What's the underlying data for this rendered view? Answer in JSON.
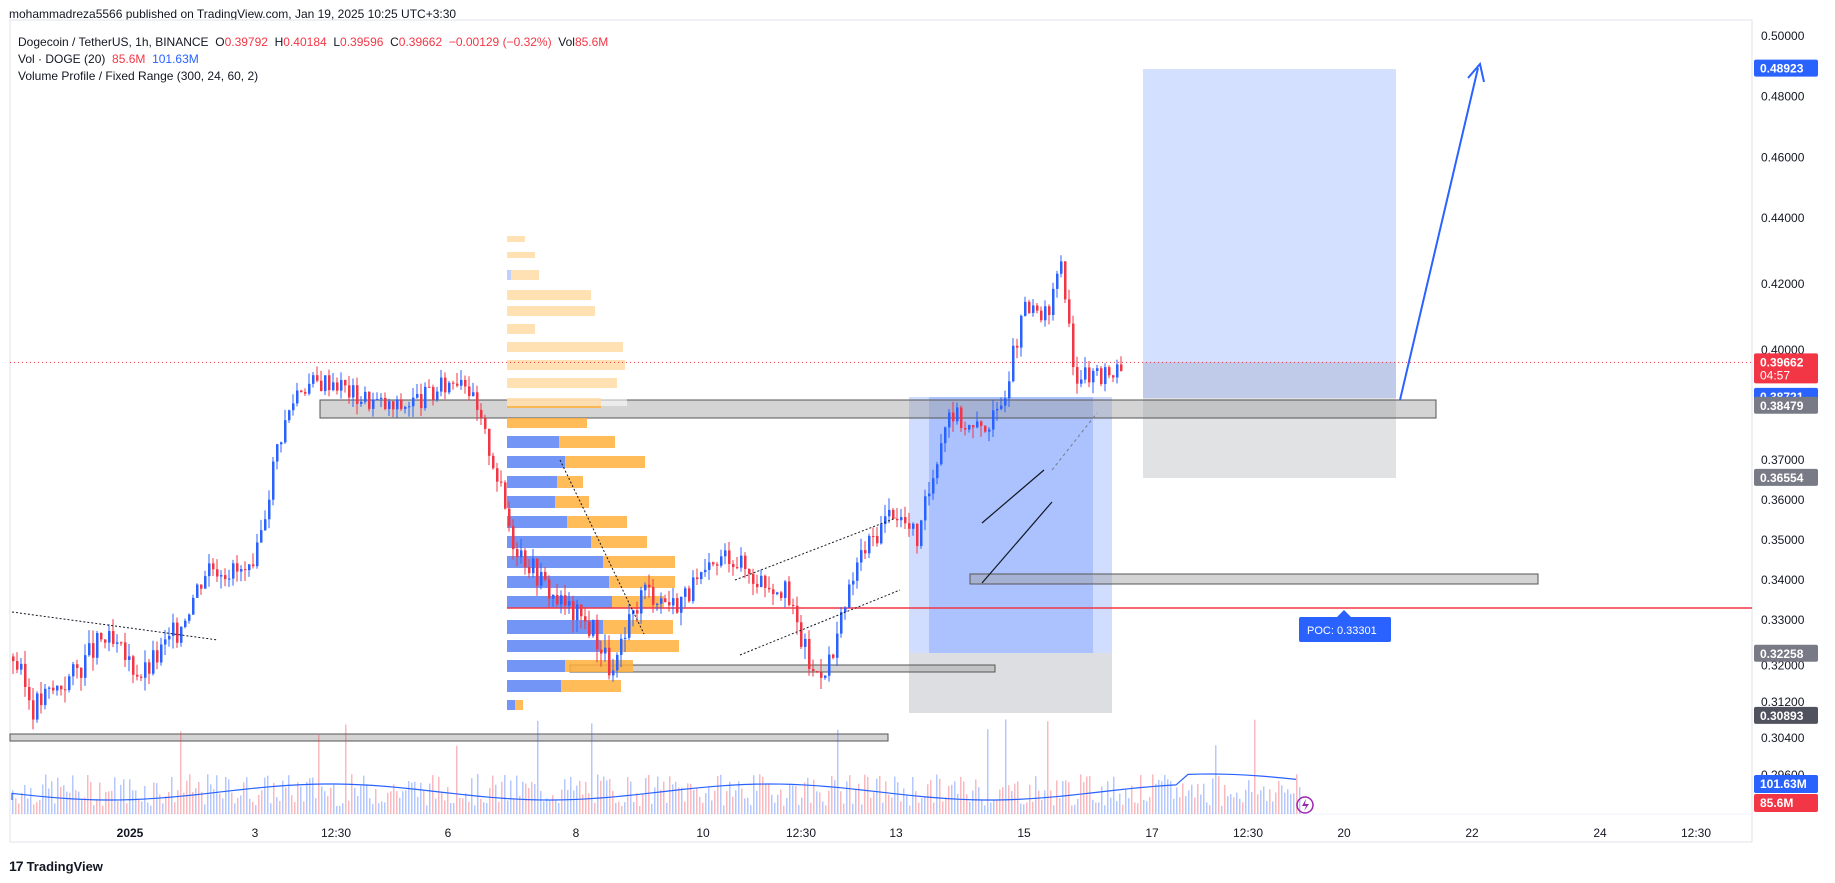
{
  "publisher_line": "mohammadreza5566 published on TradingView.com, Jan 19, 2025 10:25 UTC+3:30",
  "legend": {
    "symbol": "Dogecoin / TetherUS, 1h, BINANCE",
    "o_label": "O",
    "o": "0.39792",
    "h_label": "H",
    "h": "0.40184",
    "l_label": "L",
    "l": "0.39596",
    "c_label": "C",
    "c": "0.39662",
    "change": "−0.00129 (−0.32%)",
    "vol_label": "Vol",
    "vol": "85.6M",
    "vol_ind": "Vol · DOGE (20)",
    "vol_ind_v1": "85.6M",
    "vol_ind_v2": "101.63M",
    "vp": "Volume Profile / Fixed Range (300, 24, 60, 2)"
  },
  "footer": {
    "logo": "17",
    "brand": "TradingView"
  },
  "chart_data": {
    "type": "candlestick",
    "title": "Dogecoin / TetherUS, 1h, BINANCE",
    "x_tick_labels": [
      "2025",
      "3",
      "12:30",
      "6",
      "8",
      "10",
      "12:30",
      "13",
      "15",
      "17",
      "12:30",
      "20",
      "22",
      "24",
      "12:30"
    ],
    "y_tick_labels": [
      "0.50000",
      "0.48000",
      "0.46000",
      "0.44000",
      "0.42000",
      "0.40000",
      "0.37000",
      "0.36000",
      "0.35000",
      "0.34000",
      "0.33000",
      "0.32000",
      "0.31200",
      "0.30400",
      "0.29600"
    ],
    "price_badges": [
      {
        "label": "0.48923",
        "value": 0.48923,
        "color": "#2962ff"
      },
      {
        "label": "0.39662",
        "value": 0.39662,
        "color": "#f23645",
        "sub": "04:57"
      },
      {
        "label": "0.38721",
        "value": 0.38721,
        "color": "#2962ff"
      },
      {
        "label": "0.38479",
        "value": 0.38479,
        "color": "#787b86"
      },
      {
        "label": "0.36554",
        "value": 0.36554,
        "color": "#787b86"
      },
      {
        "label": "0.32258",
        "value": 0.32258,
        "color": "#787b86"
      },
      {
        "label": "0.30893",
        "value": 0.30893,
        "color": "#50535e"
      }
    ],
    "volume_badges": [
      {
        "label": "101.63M",
        "color": "#2962ff"
      },
      {
        "label": "85.6M",
        "color": "#f23645"
      }
    ],
    "poc": {
      "label": "POC: 0.33301",
      "value": 0.33301
    },
    "last_price": 0.39662,
    "key_points": [
      {
        "t": 0,
        "p": 0.322
      },
      {
        "t": 20,
        "p": 0.311
      },
      {
        "t": 60,
        "p": 0.318
      },
      {
        "t": 90,
        "p": 0.326
      },
      {
        "t": 130,
        "p": 0.318
      },
      {
        "t": 165,
        "p": 0.328
      },
      {
        "t": 195,
        "p": 0.344
      },
      {
        "t": 240,
        "p": 0.341
      },
      {
        "t": 265,
        "p": 0.375
      },
      {
        "t": 285,
        "p": 0.39
      },
      {
        "t": 320,
        "p": 0.392
      },
      {
        "t": 340,
        "p": 0.388
      },
      {
        "t": 380,
        "p": 0.384
      },
      {
        "t": 420,
        "p": 0.388
      },
      {
        "t": 450,
        "p": 0.394
      },
      {
        "t": 480,
        "p": 0.37
      },
      {
        "t": 500,
        "p": 0.35
      },
      {
        "t": 540,
        "p": 0.336
      },
      {
        "t": 580,
        "p": 0.328
      },
      {
        "t": 600,
        "p": 0.318
      },
      {
        "t": 630,
        "p": 0.338
      },
      {
        "t": 660,
        "p": 0.334
      },
      {
        "t": 690,
        "p": 0.34
      },
      {
        "t": 715,
        "p": 0.347
      },
      {
        "t": 740,
        "p": 0.341
      },
      {
        "t": 770,
        "p": 0.338
      },
      {
        "t": 800,
        "p": 0.318
      },
      {
        "t": 820,
        "p": 0.322
      },
      {
        "t": 845,
        "p": 0.345
      },
      {
        "t": 880,
        "p": 0.358
      },
      {
        "t": 905,
        "p": 0.35
      },
      {
        "t": 935,
        "p": 0.384
      },
      {
        "t": 960,
        "p": 0.378
      },
      {
        "t": 985,
        "p": 0.382
      },
      {
        "t": 1012,
        "p": 0.412
      },
      {
        "t": 1035,
        "p": 0.41
      },
      {
        "t": 1048,
        "p": 0.428
      },
      {
        "t": 1060,
        "p": 0.394
      },
      {
        "t": 1085,
        "p": 0.392
      },
      {
        "t": 1110,
        "p": 0.3966
      }
    ]
  }
}
